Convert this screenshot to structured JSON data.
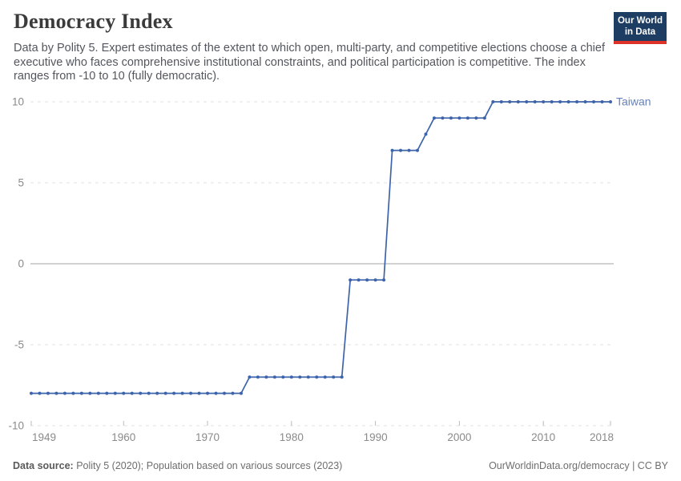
{
  "header": {
    "title": "Democracy Index",
    "subtitle": "Data by Polity 5. Expert estimates of the extent to which open, multi-party, and competitive elections choose a chief executive who faces comprehensive institutional constraints, and political participation is competitive. The index ranges from -10 to 10 (fully democratic)."
  },
  "logo": {
    "line1": "Our World",
    "line2": "in Data",
    "bg_color": "#1d3d63",
    "bar_color": "#dc3228"
  },
  "chart_data": {
    "type": "line",
    "title": "Democracy Index",
    "xlabel": "",
    "ylabel": "",
    "x_range": [
      1949,
      2018
    ],
    "y_range": [
      -10,
      10
    ],
    "x_ticks": [
      1949,
      1960,
      1970,
      1980,
      1990,
      2000,
      2010,
      2018
    ],
    "y_ticks": [
      -10,
      -5,
      0,
      5,
      10
    ],
    "grid": "horizontal dashed gridlines, solid line at 0",
    "legend_position": "label at end of line",
    "colors": {
      "line": "#3d64aa",
      "entity_label": "#6783ba",
      "gridline": "#e2e2e2",
      "zero_line": "#a3a3a3",
      "tick_mark": "#bcbcbc",
      "axis_label": "#8a8a8a"
    },
    "series": [
      {
        "name": "Taiwan",
        "color": "#3d64aa",
        "x": [
          1949,
          1950,
          1951,
          1952,
          1953,
          1954,
          1955,
          1956,
          1957,
          1958,
          1959,
          1960,
          1961,
          1962,
          1963,
          1964,
          1965,
          1966,
          1967,
          1968,
          1969,
          1970,
          1971,
          1972,
          1973,
          1974,
          1975,
          1976,
          1977,
          1978,
          1979,
          1980,
          1981,
          1982,
          1983,
          1984,
          1985,
          1986,
          1987,
          1988,
          1989,
          1990,
          1991,
          1992,
          1993,
          1994,
          1995,
          1996,
          1997,
          1998,
          1999,
          2000,
          2001,
          2002,
          2003,
          2004,
          2005,
          2006,
          2007,
          2008,
          2009,
          2010,
          2011,
          2012,
          2013,
          2014,
          2015,
          2016,
          2017,
          2018
        ],
        "values": [
          -8,
          -8,
          -8,
          -8,
          -8,
          -8,
          -8,
          -8,
          -8,
          -8,
          -8,
          -8,
          -8,
          -8,
          -8,
          -8,
          -8,
          -8,
          -8,
          -8,
          -8,
          -8,
          -8,
          -8,
          -8,
          -8,
          -7,
          -7,
          -7,
          -7,
          -7,
          -7,
          -7,
          -7,
          -7,
          -7,
          -7,
          -7,
          -1,
          -1,
          -1,
          -1,
          -1,
          7,
          7,
          7,
          7,
          8,
          9,
          9,
          9,
          9,
          9,
          9,
          9,
          10,
          10,
          10,
          10,
          10,
          10,
          10,
          10,
          10,
          10,
          10,
          10,
          10,
          10,
          10
        ]
      }
    ]
  },
  "footer": {
    "source_label": "Data source:",
    "source_text": " Polity 5 (2020); Population based on various sources (2023)",
    "right_text": "OurWorldinData.org/democracy | CC BY"
  }
}
